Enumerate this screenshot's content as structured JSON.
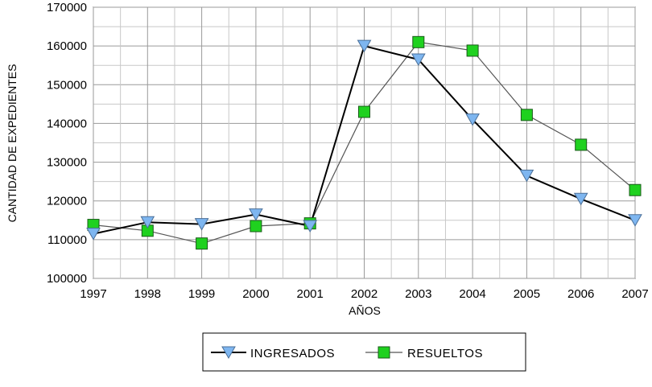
{
  "chart_data": {
    "type": "line",
    "title": "",
    "xlabel": "AÑOS",
    "ylabel": "CANTIDAD DE EXPEDIENTES",
    "x": [
      "1997",
      "1998",
      "1999",
      "2000",
      "2001",
      "2002",
      "2003",
      "2004",
      "2005",
      "2006",
      "2007"
    ],
    "ylim": [
      100000,
      170000
    ],
    "yticks": [
      100000,
      110000,
      120000,
      130000,
      140000,
      150000,
      160000,
      170000
    ],
    "ytick_labels": [
      "100000",
      "110000",
      "120000",
      "130000",
      "140000",
      "150000",
      "160000",
      "170000"
    ],
    "grid": true,
    "legend_position": "bottom",
    "series": [
      {
        "name": "INGRESADOS",
        "marker": "triangle-down",
        "color": "#7EB6F0",
        "line_color": "#000000",
        "values": [
          111500,
          114500,
          114000,
          116500,
          113500,
          160000,
          156500,
          141000,
          126500,
          120500,
          115000
        ]
      },
      {
        "name": "RESUELTOS",
        "marker": "square",
        "color": "#1FD11F",
        "line_color": "#555555",
        "values": [
          113800,
          112300,
          109000,
          113500,
          114200,
          143000,
          161000,
          158800,
          142200,
          134500,
          122800
        ]
      }
    ]
  }
}
